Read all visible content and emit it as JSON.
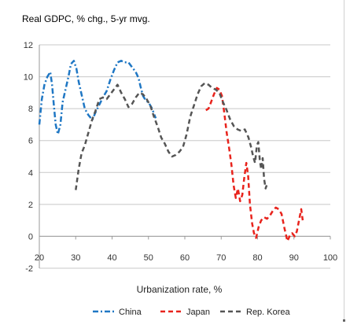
{
  "chart_data": {
    "type": "line",
    "title": "Real GDPC, % chg., 5-yr mvg.",
    "xlabel": "Urbanization rate, %",
    "ylabel": "",
    "xlim": [
      20,
      100
    ],
    "ylim": [
      -2,
      12
    ],
    "x_ticks": [
      20,
      30,
      40,
      50,
      60,
      70,
      80,
      90,
      100
    ],
    "y_ticks": [
      -2,
      0,
      2,
      4,
      6,
      8,
      10,
      12
    ],
    "grid": "horizontal",
    "legend": "bottom",
    "series": [
      {
        "name": "China",
        "color": "#1f77c4",
        "style": "dash-dot",
        "points": [
          [
            20.0,
            7.0
          ],
          [
            20.7,
            8.6
          ],
          [
            21.4,
            9.5
          ],
          [
            22.2,
            10.0
          ],
          [
            23.0,
            10.3
          ],
          [
            23.5,
            9.5
          ],
          [
            24.0,
            8.2
          ],
          [
            24.5,
            7.0
          ],
          [
            25.1,
            6.4
          ],
          [
            25.8,
            7.0
          ],
          [
            26.4,
            8.4
          ],
          [
            27.2,
            9.2
          ],
          [
            28.0,
            10.0
          ],
          [
            28.7,
            10.8
          ],
          [
            29.5,
            11.0
          ],
          [
            30.2,
            10.5
          ],
          [
            30.8,
            9.7
          ],
          [
            31.5,
            9.0
          ],
          [
            32.5,
            8.0
          ],
          [
            33.5,
            7.6
          ],
          [
            34.6,
            7.3
          ],
          [
            35.5,
            7.8
          ],
          [
            36.4,
            8.2
          ],
          [
            37.5,
            8.7
          ],
          [
            38.5,
            9.1
          ],
          [
            39.5,
            9.8
          ],
          [
            40.5,
            10.4
          ],
          [
            41.5,
            10.9
          ],
          [
            42.5,
            11.0
          ],
          [
            43.5,
            10.9
          ],
          [
            44.5,
            10.9
          ],
          [
            45.5,
            10.6
          ],
          [
            46.5,
            10.3
          ],
          [
            47.3,
            9.9
          ],
          [
            47.8,
            9.4
          ],
          [
            48.5,
            8.8
          ],
          [
            49.3,
            8.5
          ],
          [
            50.0,
            8.4
          ],
          [
            51.0,
            8.0
          ],
          [
            52.0,
            7.4
          ]
        ]
      },
      {
        "name": "Japan",
        "color": "#e8231c",
        "style": "dash",
        "points": [
          [
            65.8,
            7.9
          ],
          [
            66.5,
            8.0
          ],
          [
            67.2,
            8.4
          ],
          [
            68.0,
            8.9
          ],
          [
            68.8,
            9.3
          ],
          [
            69.5,
            9.2
          ],
          [
            70.2,
            8.8
          ],
          [
            70.8,
            7.8
          ],
          [
            71.5,
            6.5
          ],
          [
            72.2,
            5.5
          ],
          [
            72.8,
            4.5
          ],
          [
            73.4,
            3.2
          ],
          [
            74.0,
            2.4
          ],
          [
            74.6,
            3.0
          ],
          [
            75.2,
            2.2
          ],
          [
            75.8,
            2.6
          ],
          [
            76.3,
            3.6
          ],
          [
            76.9,
            4.6
          ],
          [
            77.4,
            3.8
          ],
          [
            77.9,
            2.0
          ],
          [
            78.5,
            0.8
          ],
          [
            79.0,
            0.2
          ],
          [
            79.6,
            -0.1
          ],
          [
            80.3,
            0.6
          ],
          [
            81.0,
            1.0
          ],
          [
            81.8,
            1.2
          ],
          [
            82.6,
            1.1
          ],
          [
            83.4,
            1.3
          ],
          [
            84.2,
            1.6
          ],
          [
            85.0,
            1.8
          ],
          [
            85.8,
            1.7
          ],
          [
            86.6,
            1.4
          ],
          [
            87.4,
            0.5
          ],
          [
            88.2,
            -0.3
          ],
          [
            88.8,
            0.0
          ],
          [
            89.5,
            0.2
          ],
          [
            90.2,
            0.0
          ],
          [
            90.8,
            0.3
          ],
          [
            91.4,
            1.0
          ],
          [
            92.0,
            1.7
          ],
          [
            92.4,
            1.0
          ]
        ]
      },
      {
        "name": "Rep. Korea",
        "color": "#555555",
        "style": "dash",
        "points": [
          [
            30.0,
            2.9
          ],
          [
            30.8,
            4.2
          ],
          [
            31.6,
            5.2
          ],
          [
            32.5,
            5.7
          ],
          [
            33.5,
            6.5
          ],
          [
            34.5,
            7.3
          ],
          [
            35.5,
            7.9
          ],
          [
            36.5,
            8.6
          ],
          [
            37.5,
            8.7
          ],
          [
            38.5,
            8.6
          ],
          [
            39.5,
            8.9
          ],
          [
            40.5,
            9.2
          ],
          [
            41.5,
            9.5
          ],
          [
            42.5,
            9.0
          ],
          [
            43.5,
            8.6
          ],
          [
            44.5,
            8.1
          ],
          [
            45.5,
            8.3
          ],
          [
            46.5,
            8.7
          ],
          [
            47.5,
            9.0
          ],
          [
            48.5,
            8.9
          ],
          [
            49.5,
            8.6
          ],
          [
            50.5,
            8.2
          ],
          [
            51.5,
            7.5
          ],
          [
            52.5,
            6.9
          ],
          [
            53.5,
            6.2
          ],
          [
            54.5,
            5.8
          ],
          [
            55.5,
            5.3
          ],
          [
            56.5,
            5.0
          ],
          [
            57.5,
            5.1
          ],
          [
            58.5,
            5.3
          ],
          [
            59.5,
            5.6
          ],
          [
            60.5,
            6.4
          ],
          [
            61.5,
            7.5
          ],
          [
            62.5,
            8.2
          ],
          [
            63.5,
            8.9
          ],
          [
            64.5,
            9.4
          ],
          [
            65.5,
            9.6
          ],
          [
            66.5,
            9.5
          ],
          [
            67.5,
            9.3
          ],
          [
            68.5,
            9.2
          ],
          [
            69.5,
            9.0
          ],
          [
            70.5,
            8.4
          ],
          [
            71.5,
            7.9
          ],
          [
            72.5,
            7.3
          ],
          [
            73.5,
            6.9
          ],
          [
            74.5,
            6.7
          ],
          [
            75.5,
            6.6
          ],
          [
            76.5,
            6.7
          ],
          [
            77.5,
            6.2
          ],
          [
            78.2,
            5.6
          ],
          [
            78.8,
            5.0
          ],
          [
            79.3,
            4.6
          ],
          [
            79.8,
            5.7
          ],
          [
            80.2,
            5.9
          ],
          [
            80.6,
            4.8
          ],
          [
            81.0,
            4.2
          ],
          [
            81.4,
            4.9
          ],
          [
            81.8,
            3.6
          ],
          [
            82.2,
            3.0
          ],
          [
            82.5,
            3.2
          ]
        ]
      }
    ]
  }
}
